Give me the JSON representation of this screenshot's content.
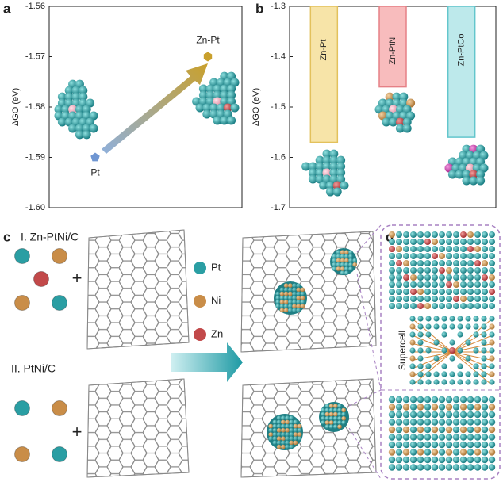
{
  "panel_labels": [
    "a",
    "b",
    "c",
    "d"
  ],
  "chart_data": [
    {
      "type": "scatter",
      "ylabel": "ΔGO (eV)",
      "categories": [
        "Pt",
        "Zn-Pt"
      ],
      "values": [
        -1.59,
        -1.57
      ],
      "colors": [
        "#6f96d2",
        "#c9a02c"
      ],
      "ylim": [
        -1.6,
        -1.56
      ],
      "yticks": [
        {
          "value": -1.6,
          "label": "-1.60"
        },
        -1.59,
        -1.58,
        -1.57,
        -1.56
      ]
    },
    {
      "type": "bar",
      "ylabel": "ΔGO (eV)",
      "categories": [
        "Zn-Pt",
        "Zn-PtNi",
        "Zn-PtCo"
      ],
      "values": [
        -1.57,
        -1.46,
        -1.56
      ],
      "colors": [
        "#f7e4a8",
        "#f8bcbd",
        "#bde9eb"
      ],
      "edge_colors": [
        "#e3c15c",
        "#e58086",
        "#63c6cc"
      ],
      "ylim": [
        -1.7,
        -1.3
      ],
      "yticks": [
        -1.7,
        -1.6,
        -1.5,
        -1.4,
        -1.3
      ]
    }
  ],
  "scheme": {
    "routes": [
      "I. Zn-PtNi/C",
      "II. PtNi/C"
    ],
    "plus": "+",
    "legend": [
      {
        "label": "Pt",
        "color": "#2a9ea3"
      },
      {
        "label": "Ni",
        "color": "#c98d48"
      },
      {
        "label": "Zn",
        "color": "#c2494a"
      }
    ],
    "supercell": "Supercell"
  }
}
